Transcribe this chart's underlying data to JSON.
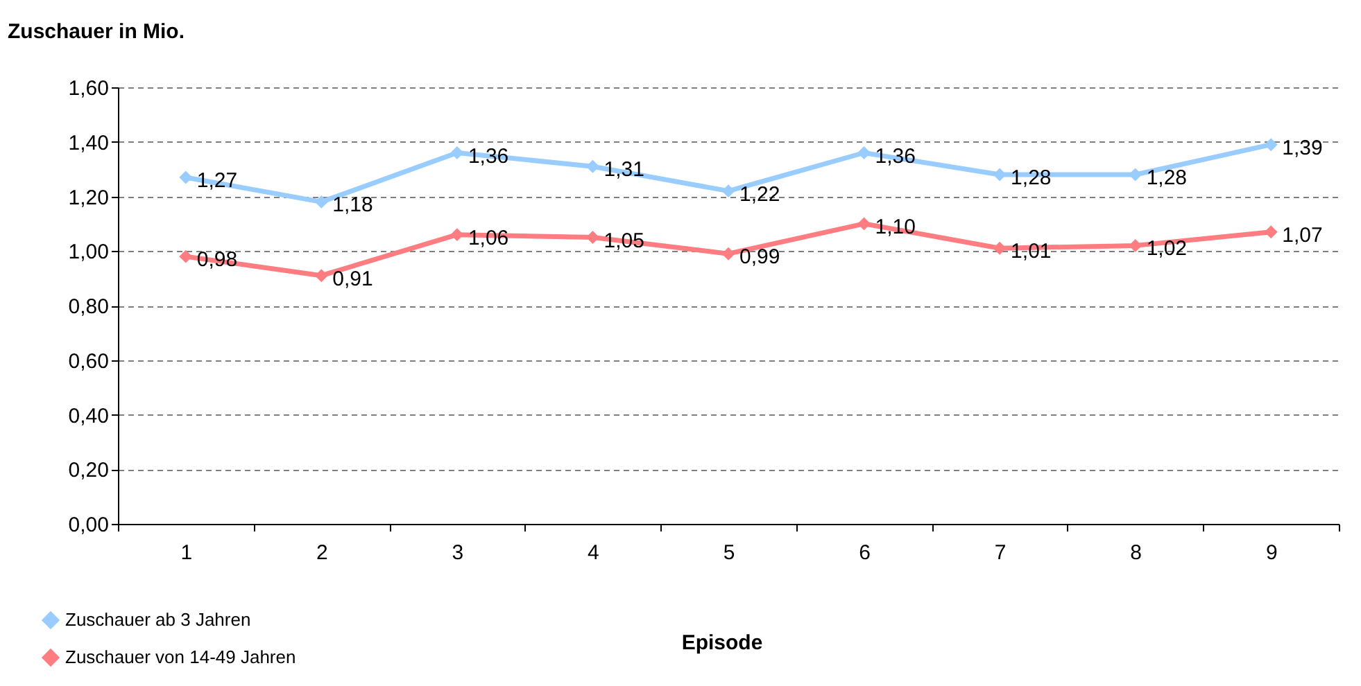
{
  "chart_data": {
    "type": "line",
    "ylabel": "Zuschauer in Mio.",
    "xlabel": "Episode",
    "categories": [
      "1",
      "2",
      "3",
      "4",
      "5",
      "6",
      "7",
      "8",
      "9"
    ],
    "series": [
      {
        "name": "Zuschauer ab 3 Jahren",
        "color": "#99ccff",
        "values": [
          1.27,
          1.18,
          1.36,
          1.31,
          1.22,
          1.36,
          1.28,
          1.28,
          1.39
        ],
        "value_labels": [
          "1,27",
          "1,18",
          "1,36",
          "1,31",
          "1,22",
          "1,36",
          "1,28",
          "1,28",
          "1,39"
        ]
      },
      {
        "name": "Zuschauer von 14-49 Jahren",
        "color": "#ff7c80",
        "values": [
          0.98,
          0.91,
          1.06,
          1.05,
          0.99,
          1.1,
          1.01,
          1.02,
          1.07
        ],
        "value_labels": [
          "0,98",
          "0,91",
          "1,06",
          "1,05",
          "0,99",
          "1,10",
          "1,01",
          "1,02",
          "1,07"
        ]
      }
    ],
    "ylim": [
      0,
      1.6
    ],
    "yticks": [
      {
        "value": 0,
        "label": "0,00"
      },
      {
        "value": 0.2,
        "label": "0,20"
      },
      {
        "value": 0.4,
        "label": "0,40"
      },
      {
        "value": 0.6,
        "label": "0,60"
      },
      {
        "value": 0.8,
        "label": "0,80"
      },
      {
        "value": 1.0,
        "label": "1,00"
      },
      {
        "value": 1.2,
        "label": "1,20"
      },
      {
        "value": 1.4,
        "label": "1,40"
      },
      {
        "value": 1.6,
        "label": "1,60"
      }
    ],
    "grid": "y",
    "legend": "bottom left",
    "marker": "diamond",
    "line_style": "solid"
  }
}
